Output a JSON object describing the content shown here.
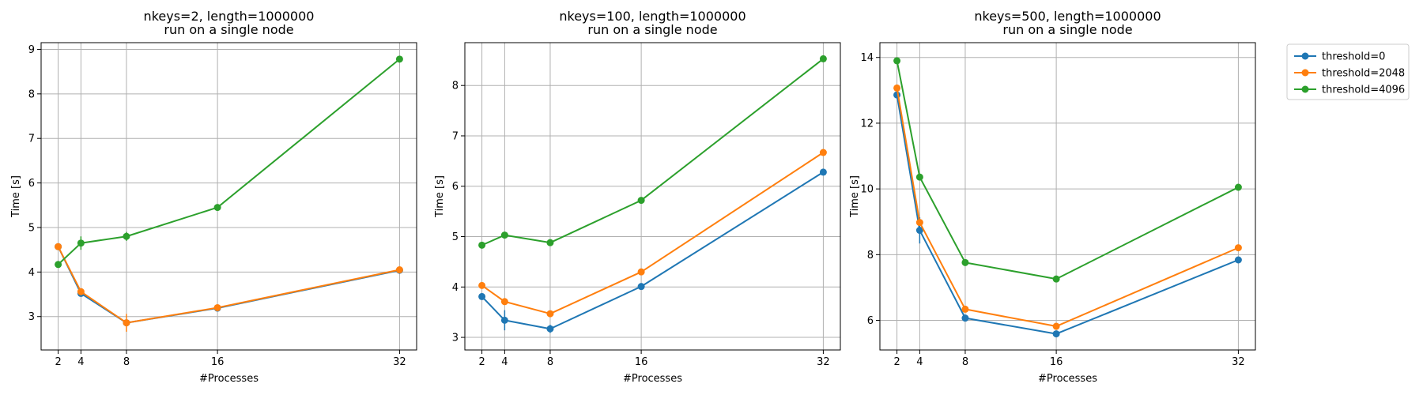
{
  "chart_data": [
    {
      "type": "line",
      "title": "nkeys=2, length=1000000",
      "subtitle": "run on a single node",
      "xlabel": "#Processes",
      "ylabel": "Time [s]",
      "x": [
        2,
        4,
        8,
        16,
        32
      ],
      "xlim": [
        0.5,
        33.5
      ],
      "ylim": [
        2.25,
        9.15
      ],
      "yticks": [
        3,
        4,
        5,
        6,
        7,
        8,
        9
      ],
      "grid": true,
      "series": [
        {
          "name": "threshold=0",
          "values": [
            4.57,
            3.52,
            2.86,
            3.19,
            4.04
          ],
          "errors": [
            0.05,
            0.06,
            0.06,
            0.03,
            0.03
          ]
        },
        {
          "name": "threshold=2048",
          "values": [
            4.57,
            3.56,
            2.86,
            3.2,
            4.05
          ],
          "errors": [
            0.05,
            0.05,
            0.2,
            0.03,
            0.03
          ]
        },
        {
          "name": "threshold=4096",
          "values": [
            4.17,
            4.65,
            4.8,
            5.45,
            8.78
          ],
          "errors": [
            0.05,
            0.15,
            0.1,
            0.05,
            0.05
          ]
        }
      ]
    },
    {
      "type": "line",
      "title": "nkeys=100, length=1000000",
      "subtitle": "run on a single node",
      "xlabel": "#Processes",
      "ylabel": "Time [s]",
      "x": [
        2,
        4,
        8,
        16,
        32
      ],
      "xlim": [
        0.5,
        33.5
      ],
      "ylim": [
        2.75,
        8.85
      ],
      "yticks": [
        3,
        4,
        5,
        6,
        7,
        8
      ],
      "grid": true,
      "series": [
        {
          "name": "threshold=0",
          "values": [
            3.81,
            3.34,
            3.17,
            4.01,
            6.28
          ],
          "errors": [
            0.04,
            0.2,
            0.08,
            0.03,
            0.03
          ]
        },
        {
          "name": "threshold=2048",
          "values": [
            4.03,
            3.71,
            3.47,
            4.3,
            6.67
          ],
          "errors": [
            0.04,
            0.06,
            0.05,
            0.03,
            0.03
          ]
        },
        {
          "name": "threshold=4096",
          "values": [
            4.83,
            5.03,
            4.88,
            5.72,
            8.53
          ],
          "errors": [
            0.04,
            0.06,
            0.04,
            0.04,
            0.04
          ]
        }
      ]
    },
    {
      "type": "line",
      "title": "nkeys=500, length=1000000",
      "subtitle": "run on a single node",
      "xlabel": "#Processes",
      "ylabel": "Time [s]",
      "x": [
        2,
        4,
        8,
        16,
        32
      ],
      "xlim": [
        0.5,
        33.5
      ],
      "ylim": [
        5.1,
        14.45
      ],
      "yticks": [
        6,
        8,
        10,
        12,
        14
      ],
      "grid": true,
      "legend": "outside-upper-right",
      "series": [
        {
          "name": "threshold=0",
          "values": [
            12.86,
            8.74,
            6.07,
            5.59,
            7.84
          ],
          "errors": [
            0.05,
            0.4,
            0.05,
            0.04,
            0.04
          ]
        },
        {
          "name": "threshold=2048",
          "values": [
            13.07,
            8.98,
            6.34,
            5.82,
            8.21
          ],
          "errors": [
            0.05,
            0.1,
            0.05,
            0.04,
            0.04
          ]
        },
        {
          "name": "threshold=4096",
          "values": [
            13.9,
            10.36,
            7.76,
            7.26,
            10.05
          ],
          "errors": [
            0.05,
            0.06,
            0.04,
            0.04,
            0.04
          ]
        }
      ]
    }
  ],
  "legend": {
    "entries": [
      "threshold=0",
      "threshold=2048",
      "threshold=4096"
    ]
  },
  "colors": {
    "series": [
      "#1f77b4",
      "#ff7f0e",
      "#2ca02c"
    ],
    "grid": "#b0b0b0",
    "axes": "#000000"
  }
}
